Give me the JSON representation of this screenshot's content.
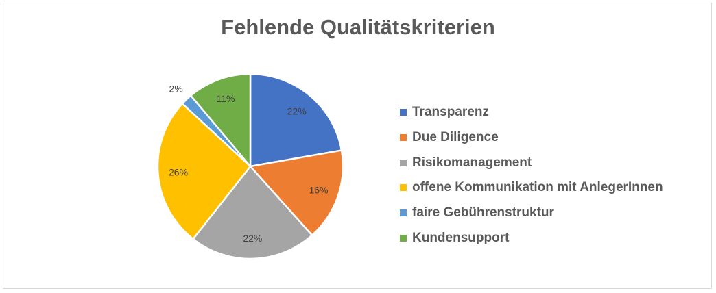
{
  "chart_data": {
    "type": "pie",
    "title": "Fehlende Qualitätskriterien",
    "categories": [
      "Transparenz",
      "Due Diligence",
      "Risikomanagement",
      "offene Kommunikation mit AnlegerInnen",
      "faire Gebührenstruktur",
      "Kundensupport"
    ],
    "values": [
      22,
      16,
      22,
      26,
      2,
      11
    ],
    "data_labels": [
      "22%",
      "16%",
      "22%",
      "26%",
      "2%",
      "11%"
    ],
    "colors": [
      "#4472c4",
      "#ed7d31",
      "#a5a5a5",
      "#ffc000",
      "#5b9bd5",
      "#70ad47"
    ],
    "legend_position": "right"
  }
}
